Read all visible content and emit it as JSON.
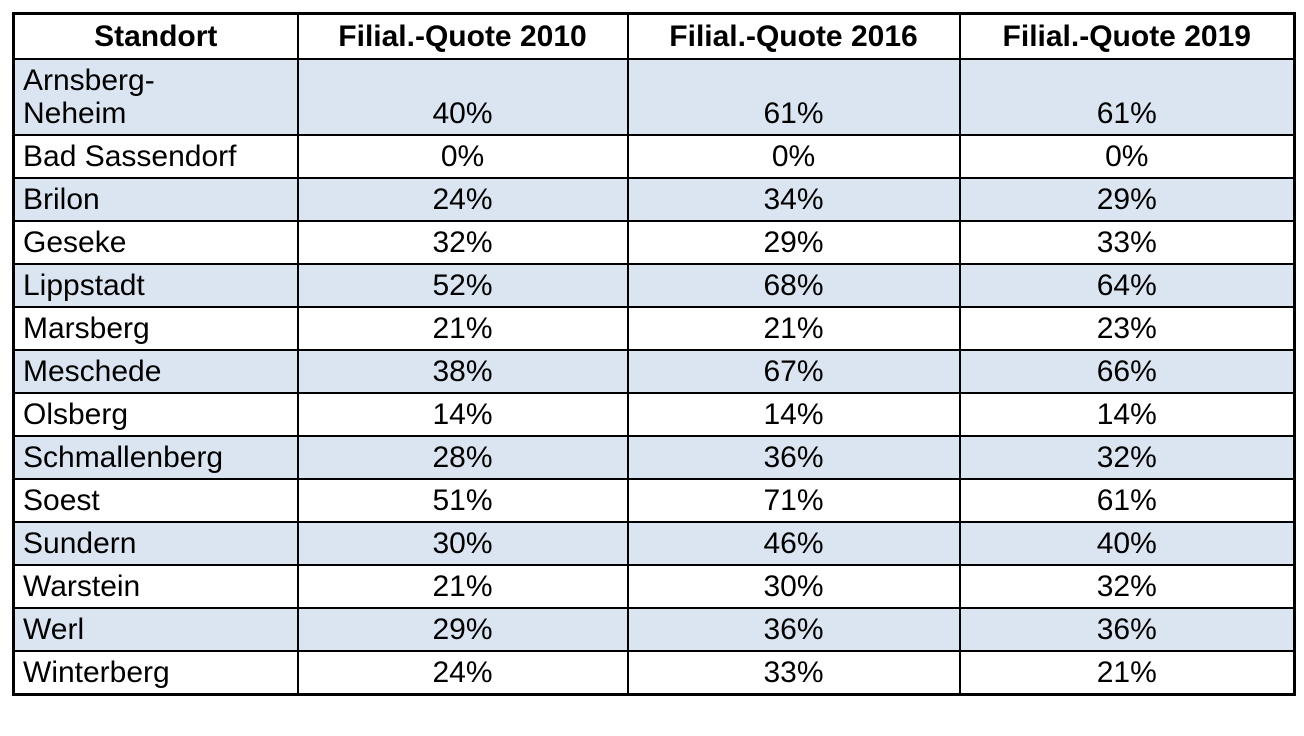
{
  "table": {
    "columns": [
      "Standort",
      "Filial.-Quote 2010",
      "Filial.-Quote 2016",
      "Filial.-Quote 2019"
    ],
    "rows": [
      {
        "standort": "Arnsberg-\nNeheim",
        "q2010": "40%",
        "q2016": "61%",
        "q2019": "61%",
        "shaded": true
      },
      {
        "standort": "Bad Sassendorf",
        "q2010": "0%",
        "q2016": "0%",
        "q2019": "0%",
        "shaded": false
      },
      {
        "standort": "Brilon",
        "q2010": "24%",
        "q2016": "34%",
        "q2019": "29%",
        "shaded": true
      },
      {
        "standort": "Geseke",
        "q2010": "32%",
        "q2016": "29%",
        "q2019": "33%",
        "shaded": false
      },
      {
        "standort": "Lippstadt",
        "q2010": "52%",
        "q2016": "68%",
        "q2019": "64%",
        "shaded": true
      },
      {
        "standort": "Marsberg",
        "q2010": "21%",
        "q2016": "21%",
        "q2019": "23%",
        "shaded": false
      },
      {
        "standort": "Meschede",
        "q2010": "38%",
        "q2016": "67%",
        "q2019": "66%",
        "shaded": true
      },
      {
        "standort": "Olsberg",
        "q2010": "14%",
        "q2016": "14%",
        "q2019": "14%",
        "shaded": false
      },
      {
        "standort": "Schmallenberg",
        "q2010": "28%",
        "q2016": "36%",
        "q2019": "32%",
        "shaded": true
      },
      {
        "standort": "Soest",
        "q2010": "51%",
        "q2016": "71%",
        "q2019": "61%",
        "shaded": false
      },
      {
        "standort": "Sundern",
        "q2010": "30%",
        "q2016": "46%",
        "q2019": "40%",
        "shaded": true
      },
      {
        "standort": "Warstein",
        "q2010": "21%",
        "q2016": "30%",
        "q2019": "32%",
        "shaded": false
      },
      {
        "standort": "Werl",
        "q2010": "29%",
        "q2016": "36%",
        "q2019": "36%",
        "shaded": true
      },
      {
        "standort": "Winterberg",
        "q2010": "24%",
        "q2016": "33%",
        "q2019": "21%",
        "shaded": false
      }
    ]
  },
  "colors": {
    "shaded_row": "#dbe5f1",
    "plain_row": "#ffffff",
    "border": "#000000",
    "text": "#000000"
  }
}
